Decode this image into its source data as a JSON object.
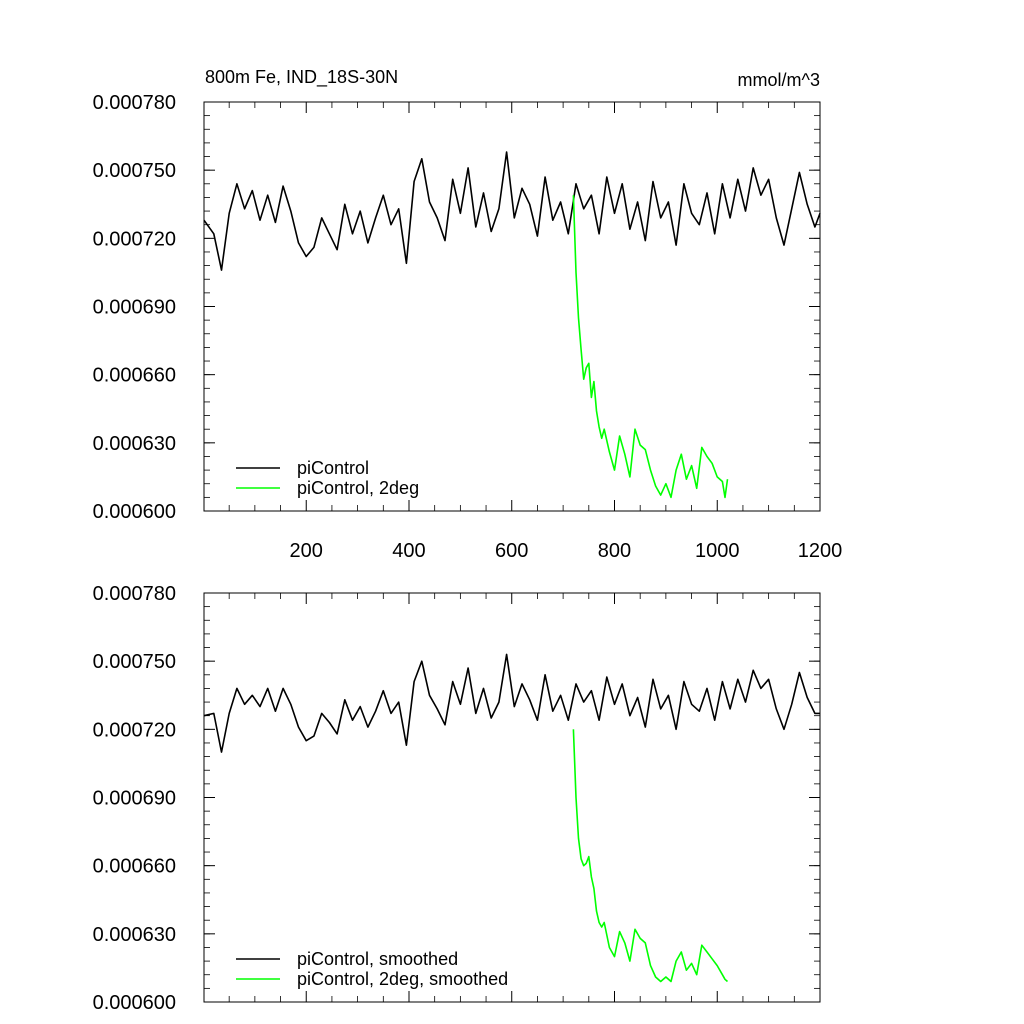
{
  "chart_data": [
    {
      "type": "line",
      "title": "800m Fe, IND_18S-30N",
      "units": "mmol/m^3",
      "xlim": [
        1,
        1200
      ],
      "ylim": [
        0.0006,
        0.00078
      ],
      "yticks": [
        0.0006,
        0.00063,
        0.00066,
        0.00069,
        0.00072,
        0.00075,
        0.00078
      ],
      "ytick_labels": [
        "0.000600",
        "0.000630",
        "0.000660",
        "0.000690",
        "0.000720",
        "0.000750",
        "0.000780"
      ],
      "xticks": [
        200,
        400,
        600,
        800,
        1000,
        1200
      ],
      "xtick_labels": [
        "200",
        "400",
        "600",
        "800",
        "1000",
        "1200"
      ],
      "legend_position": "bottom-left",
      "series": [
        {
          "name": "piControl",
          "color": "#000000",
          "x": [
            1,
            20,
            35,
            50,
            65,
            80,
            95,
            110,
            125,
            140,
            155,
            170,
            185,
            200,
            215,
            230,
            245,
            260,
            275,
            290,
            305,
            320,
            335,
            350,
            365,
            380,
            395,
            410,
            425,
            440,
            455,
            470,
            485,
            500,
            515,
            530,
            545,
            560,
            575,
            590,
            605,
            620,
            635,
            650,
            665,
            680,
            695,
            710,
            725,
            740,
            755,
            770,
            785,
            800,
            815,
            830,
            845,
            860,
            875,
            890,
            905,
            920,
            935,
            950,
            965,
            980,
            995,
            1010,
            1025,
            1040,
            1055,
            1070,
            1085,
            1100,
            1115,
            1130,
            1145,
            1160,
            1175,
            1190,
            1200
          ],
          "values": [
            0.000728,
            0.000722,
            0.000706,
            0.000731,
            0.000744,
            0.000733,
            0.000741,
            0.000728,
            0.000739,
            0.000727,
            0.000743,
            0.000732,
            0.000718,
            0.000712,
            0.000716,
            0.000729,
            0.000722,
            0.000715,
            0.000735,
            0.000722,
            0.000732,
            0.000718,
            0.000729,
            0.000739,
            0.000726,
            0.000733,
            0.000709,
            0.000745,
            0.000755,
            0.000736,
            0.000729,
            0.000719,
            0.000746,
            0.000731,
            0.000751,
            0.000725,
            0.00074,
            0.000723,
            0.000733,
            0.000758,
            0.000729,
            0.000742,
            0.000735,
            0.000721,
            0.000747,
            0.000728,
            0.000736,
            0.000722,
            0.000744,
            0.000733,
            0.000739,
            0.000722,
            0.000747,
            0.000731,
            0.000744,
            0.000724,
            0.000736,
            0.000719,
            0.000745,
            0.000729,
            0.000736,
            0.000717,
            0.000744,
            0.000731,
            0.000726,
            0.00074,
            0.000722,
            0.000744,
            0.000729,
            0.000746,
            0.000732,
            0.000751,
            0.000739,
            0.000746,
            0.000729,
            0.000717,
            0.000733,
            0.000749,
            0.000735,
            0.000725,
            0.000731
          ]
        },
        {
          "name": "piControl, 2deg",
          "color": "#00ff00",
          "x": [
            720,
            725,
            730,
            735,
            740,
            745,
            750,
            755,
            760,
            765,
            770,
            775,
            780,
            790,
            800,
            810,
            820,
            830,
            840,
            850,
            860,
            870,
            880,
            890,
            900,
            910,
            920,
            930,
            940,
            950,
            960,
            970,
            980,
            990,
            1000,
            1010,
            1015,
            1020
          ],
          "values": [
            0.000739,
            0.000705,
            0.000685,
            0.000671,
            0.000658,
            0.000663,
            0.000665,
            0.00065,
            0.000657,
            0.000644,
            0.000637,
            0.000632,
            0.000636,
            0.000626,
            0.000618,
            0.000633,
            0.000625,
            0.000615,
            0.000636,
            0.000629,
            0.000627,
            0.000618,
            0.000611,
            0.000607,
            0.000612,
            0.000606,
            0.000618,
            0.000625,
            0.000614,
            0.00062,
            0.00061,
            0.000628,
            0.000624,
            0.000621,
            0.000615,
            0.000613,
            0.000606,
            0.000614
          ]
        }
      ]
    },
    {
      "type": "line",
      "xlim": [
        1,
        1200
      ],
      "ylim": [
        0.0006,
        0.00078
      ],
      "yticks": [
        0.0006,
        0.00063,
        0.00066,
        0.00069,
        0.00072,
        0.00075,
        0.00078
      ],
      "ytick_labels": [
        "0.000600",
        "0.000630",
        "0.000660",
        "0.000690",
        "0.000720",
        "0.000750",
        "0.000780"
      ],
      "xticks": [
        200,
        400,
        600,
        800,
        1000,
        1200
      ],
      "legend_position": "bottom-left",
      "series": [
        {
          "name": "piControl, smoothed",
          "color": "#000000",
          "x": [
            1,
            20,
            35,
            50,
            65,
            80,
            95,
            110,
            125,
            140,
            155,
            170,
            185,
            200,
            215,
            230,
            245,
            260,
            275,
            290,
            305,
            320,
            335,
            350,
            365,
            380,
            395,
            410,
            425,
            440,
            455,
            470,
            485,
            500,
            515,
            530,
            545,
            560,
            575,
            590,
            605,
            620,
            635,
            650,
            665,
            680,
            695,
            710,
            725,
            740,
            755,
            770,
            785,
            800,
            815,
            830,
            845,
            860,
            875,
            890,
            905,
            920,
            935,
            950,
            965,
            980,
            995,
            1010,
            1025,
            1040,
            1055,
            1070,
            1085,
            1100,
            1115,
            1130,
            1145,
            1160,
            1175,
            1190,
            1200
          ],
          "values": [
            0.000726,
            0.000727,
            0.00071,
            0.000727,
            0.000738,
            0.000731,
            0.000735,
            0.00073,
            0.000738,
            0.000728,
            0.000738,
            0.000731,
            0.000721,
            0.000715,
            0.000717,
            0.000727,
            0.000723,
            0.000718,
            0.000733,
            0.000724,
            0.00073,
            0.000721,
            0.000728,
            0.000737,
            0.000727,
            0.000732,
            0.000713,
            0.000741,
            0.00075,
            0.000735,
            0.000729,
            0.000722,
            0.000741,
            0.000731,
            0.000747,
            0.000727,
            0.000738,
            0.000725,
            0.000732,
            0.000753,
            0.00073,
            0.00074,
            0.000733,
            0.000724,
            0.000744,
            0.000728,
            0.000735,
            0.000724,
            0.00074,
            0.000732,
            0.000737,
            0.000724,
            0.000743,
            0.000731,
            0.00074,
            0.000726,
            0.000734,
            0.000721,
            0.000742,
            0.000729,
            0.000735,
            0.00072,
            0.000741,
            0.000731,
            0.000728,
            0.000738,
            0.000724,
            0.000741,
            0.000729,
            0.000742,
            0.000732,
            0.000746,
            0.000738,
            0.000742,
            0.000729,
            0.00072,
            0.000731,
            0.000745,
            0.000734,
            0.000727,
            0.000727
          ]
        },
        {
          "name": "piControl, 2deg, smoothed",
          "color": "#00ff00",
          "x": [
            720,
            725,
            730,
            735,
            740,
            745,
            750,
            755,
            760,
            765,
            770,
            775,
            780,
            790,
            800,
            810,
            820,
            830,
            840,
            850,
            860,
            870,
            880,
            890,
            900,
            910,
            920,
            930,
            940,
            950,
            960,
            970,
            980,
            990,
            1000,
            1010,
            1015,
            1020
          ],
          "values": [
            0.00072,
            0.00069,
            0.000672,
            0.000663,
            0.00066,
            0.000661,
            0.000664,
            0.000655,
            0.00065,
            0.00064,
            0.000635,
            0.000633,
            0.000635,
            0.000624,
            0.00062,
            0.000631,
            0.000626,
            0.000618,
            0.000632,
            0.000628,
            0.000626,
            0.000616,
            0.000611,
            0.000609,
            0.000611,
            0.000609,
            0.000618,
            0.000622,
            0.000614,
            0.000617,
            0.000612,
            0.000625,
            0.000622,
            0.000619,
            0.000616,
            0.000612,
            0.00061,
            0.000609
          ]
        }
      ]
    }
  ]
}
